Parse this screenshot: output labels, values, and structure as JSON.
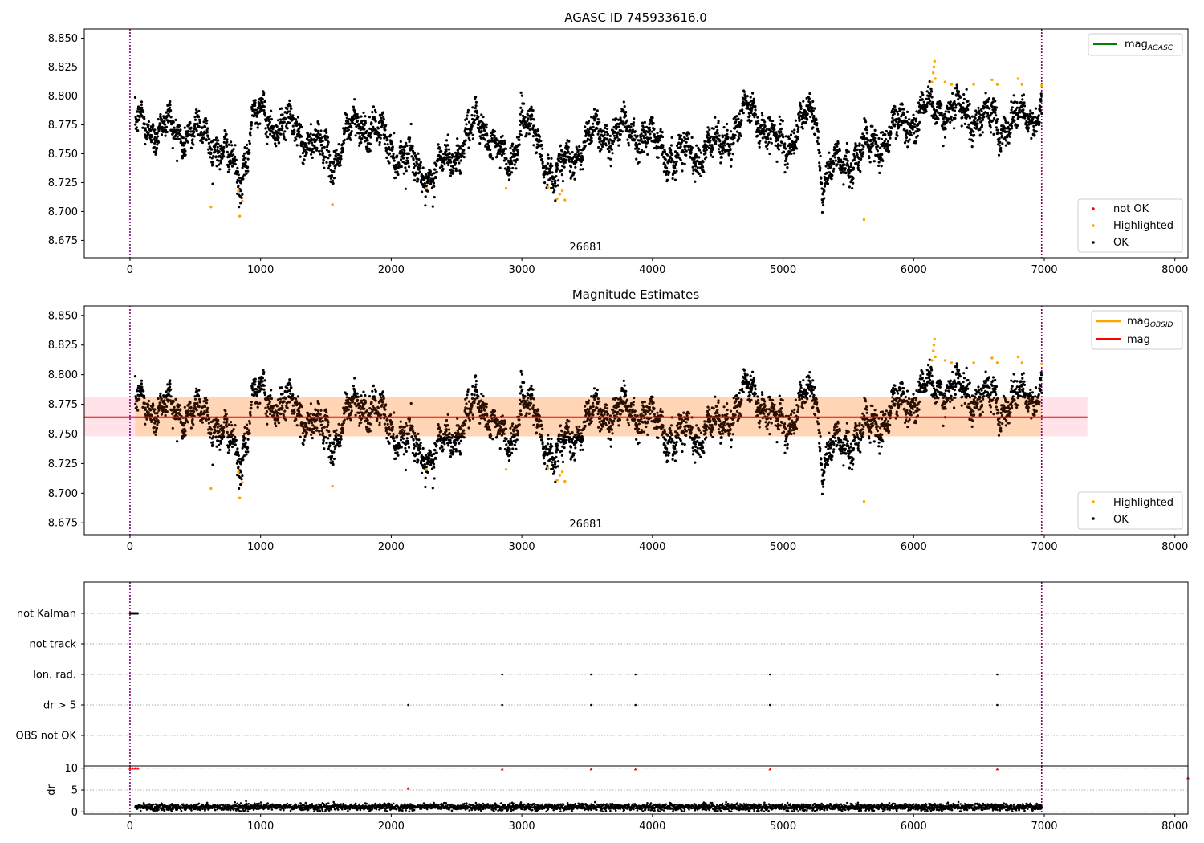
{
  "figure": {
    "background": "#ffffff"
  },
  "chart_data": [
    {
      "id": "panel1",
      "type": "scatter",
      "title": "AGASC ID 745933616.0",
      "xlim": [
        -350,
        8100
      ],
      "ylim": [
        8.66,
        8.858
      ],
      "x_ticks": [
        0,
        1000,
        2000,
        3000,
        4000,
        5000,
        6000,
        7000,
        8000
      ],
      "y_ticks": [
        8.675,
        8.7,
        8.725,
        8.75,
        8.775,
        8.8,
        8.825,
        8.85
      ],
      "y_tick_labels": [
        "8.675",
        "8.700",
        "8.725",
        "8.750",
        "8.775",
        "8.800",
        "8.825",
        "8.850"
      ],
      "vlines": [
        0,
        6980
      ],
      "vline_color": "#800080",
      "annotation": {
        "text": "26681",
        "x": 3490
      },
      "legend_lines": {
        "placement": "top-right",
        "items": [
          {
            "label": "mag",
            "sub": "AGASC",
            "color": "#008000"
          }
        ]
      },
      "legend_points": {
        "placement": "bottom-right",
        "items": [
          {
            "label": "not OK",
            "color": "#ff0000"
          },
          {
            "label": "Highlighted",
            "color": "#ffa500"
          },
          {
            "label": "OK",
            "color": "#000000"
          }
        ]
      },
      "series": [
        {
          "name": "OK",
          "color": "#000000",
          "x_range": [
            40,
            6980
          ],
          "sample_points": [
            [
              100,
              8.775
            ],
            [
              620,
              8.765
            ],
            [
              850,
              8.728
            ],
            [
              950,
              8.785
            ],
            [
              1300,
              8.768
            ],
            [
              1550,
              8.745
            ],
            [
              1760,
              8.78
            ],
            [
              2300,
              8.728
            ],
            [
              2700,
              8.778
            ],
            [
              2900,
              8.735
            ],
            [
              3000,
              8.785
            ],
            [
              3250,
              8.73
            ],
            [
              3550,
              8.768
            ],
            [
              3900,
              8.77
            ],
            [
              4150,
              8.748
            ],
            [
              4500,
              8.755
            ],
            [
              4780,
              8.79
            ],
            [
              4950,
              8.755
            ],
            [
              5250,
              8.785
            ],
            [
              5300,
              8.73
            ],
            [
              5700,
              8.758
            ],
            [
              5950,
              8.778
            ],
            [
              6150,
              8.79
            ],
            [
              6400,
              8.785
            ],
            [
              6700,
              8.775
            ],
            [
              6950,
              8.785
            ]
          ]
        },
        {
          "name": "Highlighted",
          "color": "#ffa500",
          "points": [
            [
              620,
              8.704
            ],
            [
              830,
              8.718
            ],
            [
              840,
              8.696
            ],
            [
              860,
              8.709
            ],
            [
              1550,
              8.706
            ],
            [
              2270,
              8.72
            ],
            [
              2880,
              8.72
            ],
            [
              3200,
              8.721
            ],
            [
              3270,
              8.711
            ],
            [
              3290,
              8.715
            ],
            [
              3310,
              8.718
            ],
            [
              3330,
              8.71
            ],
            [
              5620,
              8.693
            ],
            [
              6140,
              8.812
            ],
            [
              6150,
              8.82
            ],
            [
              6155,
              8.825
            ],
            [
              6160,
              8.83
            ],
            [
              6165,
              8.815
            ],
            [
              6240,
              8.812
            ],
            [
              6290,
              8.81
            ],
            [
              6460,
              8.81
            ],
            [
              6600,
              8.814
            ],
            [
              6640,
              8.81
            ],
            [
              6800,
              8.815
            ],
            [
              6830,
              8.81
            ],
            [
              6980,
              8.809
            ]
          ]
        }
      ]
    },
    {
      "id": "panel2",
      "type": "scatter",
      "title": "Magnitude Estimates",
      "xlim": [
        -350,
        8100
      ],
      "ylim": [
        8.665,
        8.858
      ],
      "x_ticks": [
        0,
        1000,
        2000,
        3000,
        4000,
        5000,
        6000,
        7000,
        8000
      ],
      "y_ticks": [
        8.675,
        8.7,
        8.725,
        8.75,
        8.775,
        8.8,
        8.825,
        8.85
      ],
      "y_tick_labels": [
        "8.675",
        "8.700",
        "8.725",
        "8.750",
        "8.775",
        "8.800",
        "8.825",
        "8.850"
      ],
      "vlines": [
        0,
        6980
      ],
      "vline_color": "#800080",
      "annotation": {
        "text": "26681",
        "x": 3490
      },
      "mag_line": {
        "y": 8.764,
        "x0": -350,
        "x1": 7330,
        "color": "#ff0000"
      },
      "mag_band": {
        "y0": 8.748,
        "y1": 8.781,
        "x0": -350,
        "x1": 7330,
        "color": "#ffc0cb"
      },
      "obsid_band": {
        "y0": 8.748,
        "y1": 8.781,
        "x0": 40,
        "x1": 6980,
        "color": "#ffa500"
      },
      "legend_lines": {
        "placement": "top-right",
        "items": [
          {
            "label": "mag",
            "sub": "OBSID",
            "color": "#ffa500"
          },
          {
            "label": "mag",
            "sub": "",
            "color": "#ff0000"
          }
        ]
      },
      "legend_points": {
        "placement": "bottom-right",
        "items": [
          {
            "label": "Highlighted",
            "color": "#ffa500"
          },
          {
            "label": "OK",
            "color": "#000000"
          }
        ]
      }
    },
    {
      "id": "panel3",
      "type": "scatter",
      "xlim": [
        -350,
        8100
      ],
      "categories": [
        "not Kalman",
        "not track",
        "Ion. rad.",
        "dr > 5",
        "OBS not OK"
      ],
      "vlines": [
        0,
        6980
      ],
      "vline_color": "#800080",
      "series": [
        {
          "name": "not Kalman",
          "x_range": [
            0,
            60
          ],
          "color": "#000000"
        },
        {
          "name": "not track",
          "x_values": [],
          "color": "#000000"
        },
        {
          "name": "Ion. rad.",
          "x_values": [
            2850,
            3530,
            3870,
            4900,
            6640
          ],
          "color": "#000000"
        },
        {
          "name": "dr > 5",
          "x_values": [
            2130,
            2850,
            3530,
            3870,
            4900,
            6640
          ],
          "color": "#000000"
        },
        {
          "name": "OBS not OK",
          "x_values": [],
          "color": "#000000"
        }
      ]
    },
    {
      "id": "panel4",
      "type": "scatter",
      "ylabel": "dr",
      "xlim": [
        -350,
        8100
      ],
      "ylim": [
        -0.5,
        10.5
      ],
      "x_ticks": [
        0,
        1000,
        2000,
        3000,
        4000,
        5000,
        6000,
        7000,
        8000
      ],
      "y_ticks": [
        0,
        5,
        10
      ],
      "vlines": [
        0,
        6980
      ],
      "vline_color": "#800080",
      "series": [
        {
          "name": "dr",
          "color": "#000000",
          "x_range": [
            40,
            6980
          ],
          "typical": [
            0.5,
            2.0
          ]
        },
        {
          "name": "dr > 5",
          "color": "#ff0000",
          "points": [
            [
              0,
              10
            ],
            [
              20,
              10
            ],
            [
              40,
              10
            ],
            [
              60,
              10
            ],
            [
              2130,
              5.4
            ],
            [
              2850,
              9.8
            ],
            [
              3530,
              9.8
            ],
            [
              3870,
              9.8
            ],
            [
              4900,
              9.8
            ],
            [
              6640,
              9.8
            ],
            [
              8100,
              7.8
            ]
          ]
        }
      ]
    }
  ]
}
